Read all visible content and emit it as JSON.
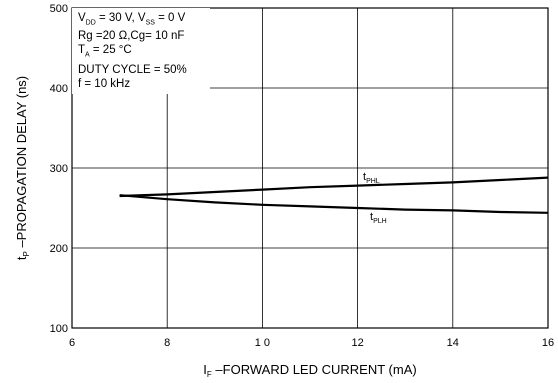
{
  "chart_data": {
    "type": "line",
    "xlabel": "I",
    "xlabel_sub": "F",
    "xlabel_rest": " –FORWARD LED CURRENT (mA)",
    "ylabel": "t",
    "ylabel_sub": "P",
    "ylabel_rest": " –PROPAGATION DELAY (ns)",
    "xlim": [
      6,
      16
    ],
    "ylim": [
      100,
      500
    ],
    "x_ticks": [
      6,
      8,
      10,
      12,
      14,
      16
    ],
    "x_tick_labels": [
      "6",
      "8",
      "1 0",
      "12",
      "14",
      "16"
    ],
    "y_ticks": [
      100,
      200,
      300,
      400,
      500
    ],
    "y_tick_labels": [
      "100",
      "200",
      "300",
      "400",
      "500"
    ],
    "grid": true,
    "series": [
      {
        "name": "t",
        "name_sub": "PHL",
        "x": [
          7,
          8,
          9,
          10,
          11,
          12,
          13,
          14,
          15,
          16
        ],
        "y": [
          265,
          267,
          270,
          273,
          276,
          278,
          280,
          282,
          285,
          288
        ]
      },
      {
        "name": "t",
        "name_sub": "PLH",
        "x": [
          7,
          8,
          9,
          10,
          11,
          12,
          13,
          14,
          15,
          16
        ],
        "y": [
          266,
          261,
          257,
          254,
          252,
          250,
          248,
          247,
          245,
          244
        ]
      }
    ],
    "conditions": [
      {
        "id": "vdd_vss"
      },
      {
        "text": "Rg =20 Ω,Cg= 10 nF"
      },
      {
        "pre": "T",
        "sub": "A",
        "post": " = 25 °C"
      },
      {
        "text": "DUTY CYCLE = 50%"
      },
      {
        "text": "f = 10 kHz"
      }
    ],
    "vdd": {
      "a": "V",
      "a_sub": "DD",
      "b": " = 30 V, V",
      "b_sub": "SS",
      "c": " = 0 V"
    }
  }
}
